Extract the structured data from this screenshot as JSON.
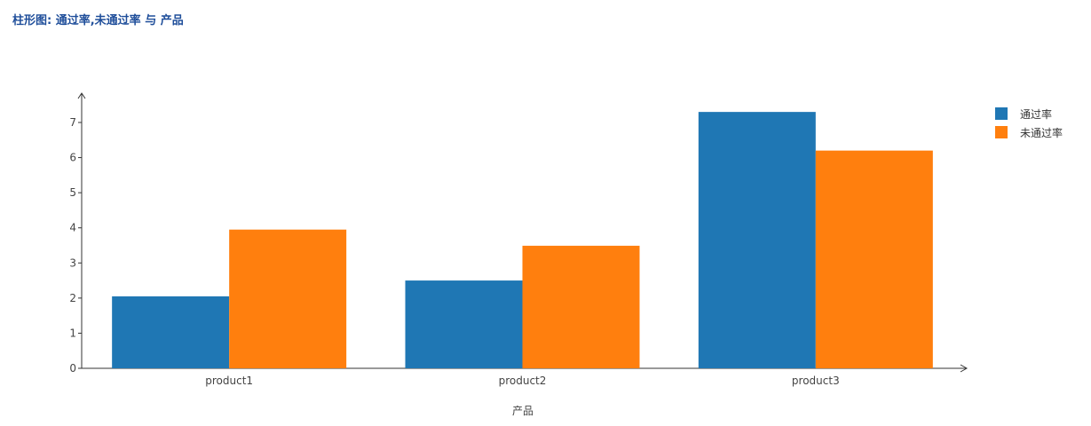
{
  "chart_data": {
    "type": "bar",
    "title": "柱形图: 通过率,未通过率 与 产品",
    "xlabel": "产品",
    "ylabel": "",
    "categories": [
      "product1",
      "product2",
      "product3"
    ],
    "series": [
      {
        "name": "通过率",
        "values": [
          2.05,
          2.5,
          7.3
        ],
        "color": "#1f77b4"
      },
      {
        "name": "未通过率",
        "values": [
          3.95,
          3.49,
          6.2
        ],
        "color": "#ff7f0e"
      }
    ],
    "yticks": [
      0,
      1,
      2,
      3,
      4,
      5,
      6,
      7
    ],
    "ylim": [
      0,
      7.5
    ],
    "grid": false,
    "legend": "top-right"
  }
}
